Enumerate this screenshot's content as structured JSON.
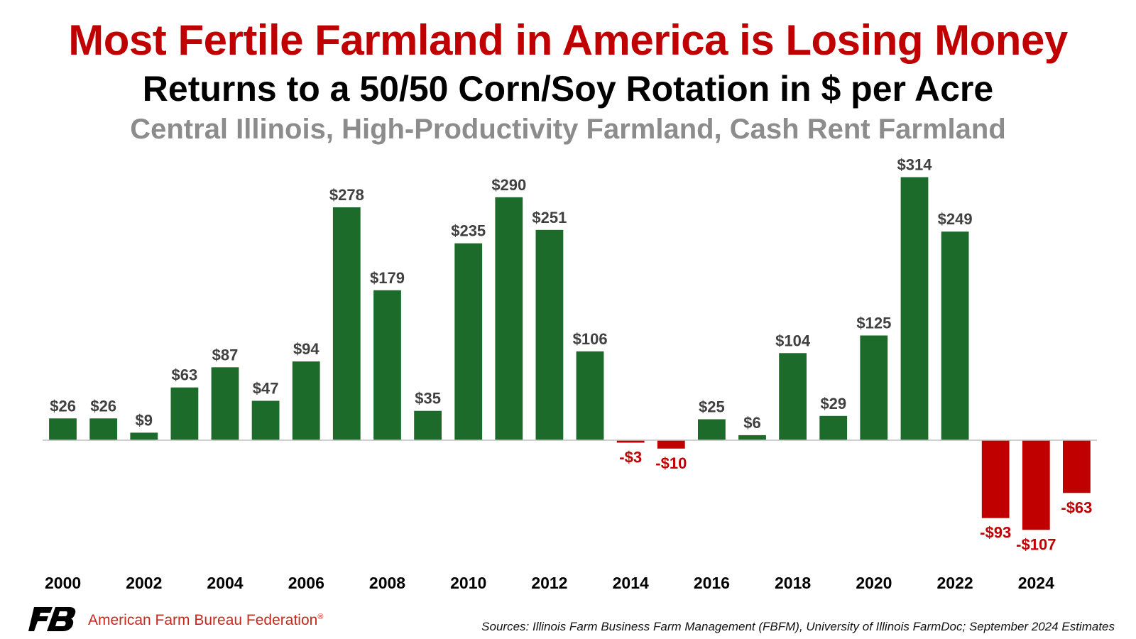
{
  "header": {
    "title": "Most Fertile Farmland in America is Losing Money",
    "subtitle": "Returns to a 50/50 Corn/Soy Rotation in $ per Acre",
    "subtitle2": "Central Illinois, High-Productivity Farmland, Cash Rent Farmland"
  },
  "footer": {
    "org": "American Farm Bureau Federation",
    "org_mark": "®",
    "source": "Sources: Illinois Farm Business Farm Management (FBFM), University of Illinois FarmDoc; September 2024 Estimates"
  },
  "colors": {
    "title": "#c00000",
    "subtitle": "#000000",
    "subtitle2": "#8c8c8c",
    "positive": "#1d6b2a",
    "negative": "#c00000",
    "positive_label": "#404040",
    "negative_label": "#c00000",
    "axis": "#000000",
    "logo": "#000000",
    "org": "#c8281e"
  },
  "icons": {
    "logo": "fb-logo-icon"
  },
  "chart_data": {
    "type": "bar",
    "title": "Most Fertile Farmland in America is Losing Money",
    "categories": [
      2000,
      2001,
      2002,
      2003,
      2004,
      2005,
      2006,
      2007,
      2008,
      2009,
      2010,
      2011,
      2012,
      2013,
      2014,
      2015,
      2016,
      2017,
      2018,
      2019,
      2020,
      2021,
      2022,
      2023,
      2024,
      2025
    ],
    "values": [
      26,
      26,
      9,
      63,
      87,
      47,
      94,
      278,
      179,
      35,
      235,
      290,
      251,
      106,
      -3,
      -10,
      25,
      6,
      104,
      29,
      125,
      314,
      249,
      -93,
      -107,
      -63
    ],
    "data_labels": [
      "$26",
      "$26",
      "$9",
      "$63",
      "$87",
      "$47",
      "$94",
      "$278",
      "$179",
      "$35",
      "$235",
      "$290",
      "$251",
      "$106",
      "-$3",
      "-$10",
      "$25",
      "$6",
      "$104",
      "$29",
      "$125",
      "$314",
      "$249",
      "-$93",
      "-$107",
      "-$63"
    ],
    "x_tick_labels": [
      "2000",
      "2002",
      "2004",
      "2006",
      "2008",
      "2010",
      "2012",
      "2014",
      "2016",
      "2018",
      "2020",
      "2022",
      "2024"
    ],
    "xlabel": "",
    "ylabel": "",
    "ylim": [
      -145,
      330
    ],
    "grid": false,
    "legend": "none"
  }
}
